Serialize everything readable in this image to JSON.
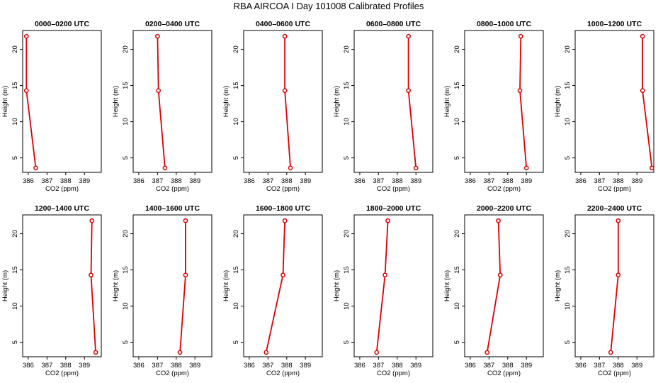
{
  "title": "RBA AIRCOA I  Day 101008  Calibrated Profiles",
  "colors": {
    "series": "#dd0000",
    "axis": "#000000"
  },
  "chart_data": [
    {
      "type": "line",
      "title": "0000–0200 UTC",
      "xlabel": "CO2 (ppm)",
      "ylabel": "Height (m)",
      "xlim": [
        385.7,
        389.9
      ],
      "ylim": [
        3.0,
        22.6
      ],
      "xticks": [
        "386",
        "387",
        "388",
        "389"
      ],
      "yticks": [
        "5",
        "10",
        "15",
        "20"
      ],
      "x": [
        385.9,
        385.9,
        386.4
      ],
      "y": [
        21.8,
        14.3,
        3.6
      ]
    },
    {
      "type": "line",
      "title": "0200–0400 UTC",
      "xlabel": "CO2 (ppm)",
      "ylabel": "Height (m)",
      "xlim": [
        385.7,
        389.9
      ],
      "ylim": [
        3.0,
        22.6
      ],
      "xticks": [
        "386",
        "387",
        "388",
        "389"
      ],
      "yticks": [
        "5",
        "10",
        "15",
        "20"
      ],
      "x": [
        387.0,
        387.05,
        387.4
      ],
      "y": [
        21.8,
        14.3,
        3.6
      ]
    },
    {
      "type": "line",
      "title": "0400–0600 UTC",
      "xlabel": "CO2 (ppm)",
      "ylabel": "Height (m)",
      "xlim": [
        385.7,
        389.9
      ],
      "ylim": [
        3.0,
        22.6
      ],
      "xticks": [
        "386",
        "387",
        "388",
        "389"
      ],
      "yticks": [
        "5",
        "10",
        "15",
        "20"
      ],
      "x": [
        387.9,
        387.9,
        388.2
      ],
      "y": [
        21.8,
        14.3,
        3.6
      ]
    },
    {
      "type": "line",
      "title": "0600–0800 UTC",
      "xlabel": "CO2 (ppm)",
      "ylabel": "Height (m)",
      "xlim": [
        385.7,
        389.9
      ],
      "ylim": [
        3.0,
        22.6
      ],
      "xticks": [
        "386",
        "387",
        "388",
        "389"
      ],
      "yticks": [
        "5",
        "10",
        "15",
        "20"
      ],
      "x": [
        388.6,
        388.6,
        389.0
      ],
      "y": [
        21.8,
        14.3,
        3.6
      ]
    },
    {
      "type": "line",
      "title": "0800–1000 UTC",
      "xlabel": "CO2 (ppm)",
      "ylabel": "Height (m)",
      "xlim": [
        385.7,
        389.9
      ],
      "ylim": [
        3.0,
        22.6
      ],
      "xticks": [
        "386",
        "387",
        "388",
        "389"
      ],
      "yticks": [
        "5",
        "10",
        "15",
        "20"
      ],
      "x": [
        388.7,
        388.65,
        389.0
      ],
      "y": [
        21.8,
        14.3,
        3.6
      ]
    },
    {
      "type": "line",
      "title": "1000–1200 UTC",
      "xlabel": "CO2 (ppm)",
      "ylabel": "Height (m)",
      "xlim": [
        385.7,
        389.9
      ],
      "ylim": [
        3.0,
        22.6
      ],
      "xticks": [
        "386",
        "387",
        "388",
        "389"
      ],
      "yticks": [
        "5",
        "10",
        "15",
        "20"
      ],
      "x": [
        389.3,
        389.3,
        389.8
      ],
      "y": [
        21.8,
        14.3,
        3.6
      ]
    },
    {
      "type": "line",
      "title": "1200–1400 UTC",
      "xlabel": "CO2 (ppm)",
      "ylabel": "Height (m)",
      "xlim": [
        385.7,
        389.9
      ],
      "ylim": [
        3.0,
        22.6
      ],
      "xticks": [
        "386",
        "387",
        "388",
        "389"
      ],
      "yticks": [
        "5",
        "10",
        "15",
        "20"
      ],
      "x": [
        389.4,
        389.35,
        389.6
      ],
      "y": [
        21.8,
        14.3,
        3.6
      ]
    },
    {
      "type": "line",
      "title": "1400–1600 UTC",
      "xlabel": "CO2 (ppm)",
      "ylabel": "Height (m)",
      "xlim": [
        385.7,
        389.9
      ],
      "ylim": [
        3.0,
        22.6
      ],
      "xticks": [
        "386",
        "387",
        "388",
        "389"
      ],
      "yticks": [
        "5",
        "10",
        "15",
        "20"
      ],
      "x": [
        388.5,
        388.5,
        388.2
      ],
      "y": [
        21.8,
        14.3,
        3.6
      ]
    },
    {
      "type": "line",
      "title": "1600–1800 UTC",
      "xlabel": "CO2 (ppm)",
      "ylabel": "Height (m)",
      "xlim": [
        385.7,
        389.9
      ],
      "ylim": [
        3.0,
        22.6
      ],
      "xticks": [
        "386",
        "387",
        "388",
        "389"
      ],
      "yticks": [
        "5",
        "10",
        "15",
        "20"
      ],
      "x": [
        387.9,
        387.8,
        386.9
      ],
      "y": [
        21.8,
        14.3,
        3.6
      ]
    },
    {
      "type": "line",
      "title": "1800–2000 UTC",
      "xlabel": "CO2 (ppm)",
      "ylabel": "Height (m)",
      "xlim": [
        385.7,
        389.9
      ],
      "ylim": [
        3.0,
        22.6
      ],
      "xticks": [
        "386",
        "387",
        "388",
        "389"
      ],
      "yticks": [
        "5",
        "10",
        "15",
        "20"
      ],
      "x": [
        387.5,
        387.35,
        386.9
      ],
      "y": [
        21.8,
        14.3,
        3.6
      ]
    },
    {
      "type": "line",
      "title": "2000–2200 UTC",
      "xlabel": "CO2 (ppm)",
      "ylabel": "Height (m)",
      "xlim": [
        385.7,
        389.9
      ],
      "ylim": [
        3.0,
        22.6
      ],
      "xticks": [
        "386",
        "387",
        "388",
        "389"
      ],
      "yticks": [
        "5",
        "10",
        "15",
        "20"
      ],
      "x": [
        387.5,
        387.6,
        386.9
      ],
      "y": [
        21.8,
        14.3,
        3.6
      ]
    },
    {
      "type": "line",
      "title": "2200–2400 UTC",
      "xlabel": "CO2 (ppm)",
      "ylabel": "Height (m)",
      "xlim": [
        385.7,
        389.9
      ],
      "ylim": [
        3.0,
        22.6
      ],
      "xticks": [
        "386",
        "387",
        "388",
        "389"
      ],
      "yticks": [
        "5",
        "10",
        "15",
        "20"
      ],
      "x": [
        388.0,
        388.0,
        387.6
      ],
      "y": [
        21.8,
        14.3,
        3.6
      ]
    }
  ]
}
